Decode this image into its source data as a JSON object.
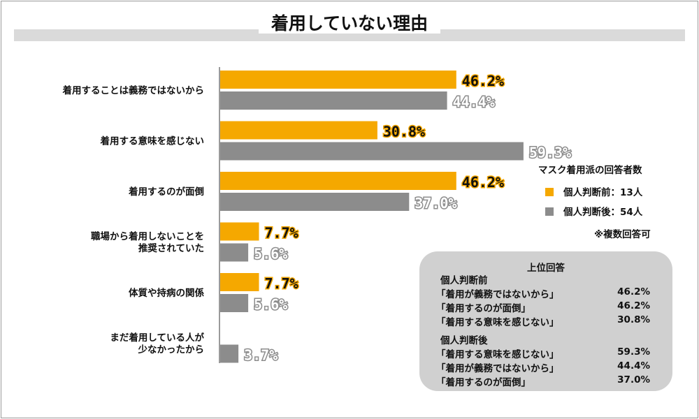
{
  "chart_data": {
    "type": "bar",
    "orientation": "horizontal",
    "title": "着用していない理由",
    "categories": [
      [
        "着用することは義務ではないから"
      ],
      [
        "着用する意味を感じない"
      ],
      [
        "着用するのが面倒"
      ],
      [
        "職場から着用しないことを",
        "推奨されていた"
      ],
      [
        "体質や持病の関係"
      ],
      [
        "まだ着用している人が",
        "少なかったから"
      ]
    ],
    "series": [
      {
        "name": "個人判断前：13人",
        "color": "#f5a800",
        "values": [
          46.2,
          30.8,
          46.2,
          7.7,
          7.7,
          null
        ],
        "labels": [
          "46.2%",
          "30.8%",
          "46.2%",
          "7.7%",
          "7.7%",
          null
        ]
      },
      {
        "name": "個人判断後：54人",
        "color": "#8c8c8c",
        "values": [
          44.4,
          59.3,
          37.0,
          5.6,
          5.6,
          3.7
        ],
        "labels": [
          "44.4%",
          "59.3%",
          "37.0%",
          "5.6%",
          "5.6%",
          "3.7%"
        ]
      }
    ],
    "xlim": [
      0,
      60
    ],
    "legend": {
      "title": "マスク着用派の回答者数",
      "note": "※複数回答可",
      "position": "right"
    }
  },
  "topbox": {
    "title": "上位回答",
    "groups": [
      {
        "heading": "個人判断前",
        "rows": [
          {
            "text": "「着用が義務ではないから」",
            "pct": "46.2%"
          },
          {
            "text": "「着用するのが面倒」",
            "pct": "46.2%"
          },
          {
            "text": "「着用する意味を感じない」",
            "pct": "30.8%"
          }
        ]
      },
      {
        "heading": "個人判断後",
        "rows": [
          {
            "text": "「着用する意味を感じない」",
            "pct": "59.3%"
          },
          {
            "text": "「着用が義務ではないから」",
            "pct": "44.4%"
          },
          {
            "text": "「着用するのが面倒」",
            "pct": "37.0%"
          }
        ]
      }
    ]
  }
}
